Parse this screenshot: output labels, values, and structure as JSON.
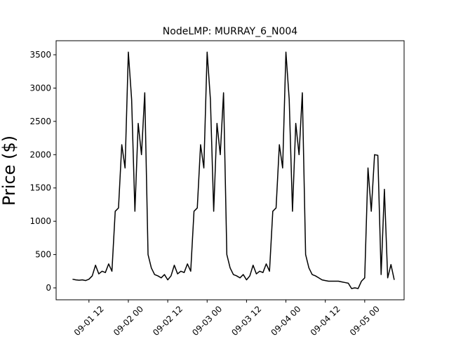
{
  "chart_data": {
    "type": "line",
    "title": "NodeLMP: MURRAY_6_N004",
    "y_label": "Price ($)",
    "x": [
      7,
      8,
      9,
      10,
      11,
      12,
      13,
      14,
      15,
      16,
      17,
      18,
      19,
      20,
      21,
      22,
      23,
      24,
      25,
      26,
      27,
      28,
      29,
      30,
      31,
      32,
      33,
      34,
      35,
      36,
      37,
      38,
      39,
      40,
      41,
      42,
      43,
      44,
      45,
      46,
      47,
      48,
      49,
      50,
      51,
      52,
      53,
      54,
      55,
      56,
      57,
      58,
      59,
      60,
      61,
      62,
      63,
      64,
      65,
      66,
      67,
      68,
      69,
      70,
      71,
      72,
      73,
      74,
      75,
      76,
      77,
      78,
      79,
      80,
      81,
      82,
      83,
      84,
      85,
      86,
      87,
      88,
      89,
      90,
      91,
      92,
      93,
      94,
      95,
      96,
      97,
      98,
      99,
      100,
      101,
      102,
      103,
      104,
      105
    ],
    "values": [
      130,
      120,
      115,
      120,
      110,
      130,
      180,
      340,
      210,
      250,
      230,
      360,
      250,
      1150,
      1200,
      2150,
      1800,
      3540,
      2830,
      1150,
      2470,
      2000,
      2930,
      500,
      300,
      200,
      180,
      150,
      200,
      120,
      180,
      340,
      210,
      250,
      230,
      360,
      250,
      1150,
      1200,
      2150,
      1800,
      3540,
      2830,
      1150,
      2470,
      2000,
      2930,
      500,
      300,
      200,
      180,
      150,
      200,
      120,
      180,
      340,
      210,
      250,
      230,
      360,
      250,
      1150,
      1200,
      2150,
      1800,
      3540,
      2830,
      1150,
      2470,
      2000,
      2930,
      500,
      300,
      200,
      180,
      150,
      120,
      110,
      100,
      100,
      100,
      100,
      90,
      80,
      70,
      -10,
      0,
      -10,
      100,
      150,
      1800,
      1150,
      2000,
      1990,
      200,
      1480,
      150,
      350,
      120
    ],
    "color": "#000000",
    "xlim": [
      2,
      108
    ],
    "xticks": [
      {
        "value": 12,
        "label": "09-01 12"
      },
      {
        "value": 24,
        "label": "09-02 00"
      },
      {
        "value": 36,
        "label": "09-02 12"
      },
      {
        "value": 48,
        "label": "09-03 00"
      },
      {
        "value": 60,
        "label": "09-03 12"
      },
      {
        "value": 72,
        "label": "09-04 00"
      },
      {
        "value": 84,
        "label": "09-04 12"
      },
      {
        "value": 96,
        "label": "09-05 00"
      }
    ],
    "ylim": [
      -179,
      3711
    ],
    "yticks": [
      0,
      500,
      1000,
      1500,
      2000,
      2500,
      3000,
      3500
    ]
  }
}
